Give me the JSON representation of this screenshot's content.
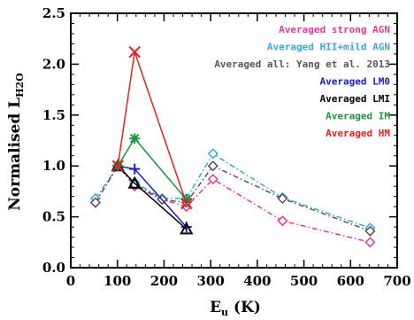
{
  "chart_data": {
    "type": "line",
    "xlabel": "E",
    "xlabel_sub": "u",
    "xlabel_unit": "(K)",
    "ylabel": "Normalised L",
    "ylabel_sub": "H2O",
    "xlim": [
      0,
      700
    ],
    "ylim": [
      0,
      2.5
    ],
    "xticks": [
      0,
      100,
      200,
      300,
      400,
      500,
      600,
      700
    ],
    "yticks": [
      0.0,
      0.5,
      1.0,
      1.5,
      2.0,
      2.5
    ],
    "xtick_labels": [
      "0",
      "100",
      "200",
      "300",
      "400",
      "500",
      "600",
      "700"
    ],
    "ytick_labels": [
      "0.0",
      "0.5",
      "1.0",
      "1.5",
      "2.0",
      "2.5"
    ],
    "legend_position": "top-right",
    "series": [
      {
        "name": "Averaged strong AGN",
        "color": "#e8399a",
        "dash": "dashdot",
        "marker": "diamond",
        "x": [
          53,
          101,
          137,
          196,
          248,
          305,
          454,
          642
        ],
        "y": [
          0.64,
          1.0,
          0.8,
          0.67,
          0.6,
          0.87,
          0.46,
          0.25
        ]
      },
      {
        "name": "Averaged HII+mild AGN",
        "color": "#3aa6e0",
        "dash": "dashdot",
        "marker": "diamond",
        "x": [
          53,
          101,
          137,
          196,
          248,
          305,
          454,
          642
        ],
        "y": [
          0.68,
          1.0,
          0.84,
          0.68,
          0.68,
          1.12,
          0.69,
          0.39
        ]
      },
      {
        "name": "Averaged all: Yang et al. 2013",
        "color": "#555555",
        "dash": "dashdot",
        "marker": "diamond",
        "x": [
          53,
          101,
          137,
          196,
          248,
          305,
          454,
          642
        ],
        "y": [
          0.64,
          1.0,
          0.82,
          0.67,
          0.64,
          1.0,
          0.68,
          0.36
        ]
      },
      {
        "name": "Averaged LM0",
        "color": "#1a1acc",
        "dash": "solid",
        "marker": "plus",
        "x": [
          101,
          137,
          248
        ],
        "y": [
          1.0,
          0.97,
          0.4
        ]
      },
      {
        "name": "Averaged LMI",
        "color": "#000000",
        "dash": "solid",
        "marker": "triangle",
        "x": [
          101,
          137,
          248
        ],
        "y": [
          1.0,
          0.83,
          0.38
        ]
      },
      {
        "name": "Averaged IM",
        "color": "#1a9640",
        "dash": "solid",
        "marker": "asterisk",
        "x": [
          101,
          137,
          248
        ],
        "y": [
          1.0,
          1.27,
          0.67
        ]
      },
      {
        "name": "Averaged HM",
        "color": "#e82020",
        "dash": "solid",
        "marker": "x",
        "x": [
          101,
          137,
          248
        ],
        "y": [
          1.0,
          2.12,
          0.63
        ]
      }
    ]
  }
}
